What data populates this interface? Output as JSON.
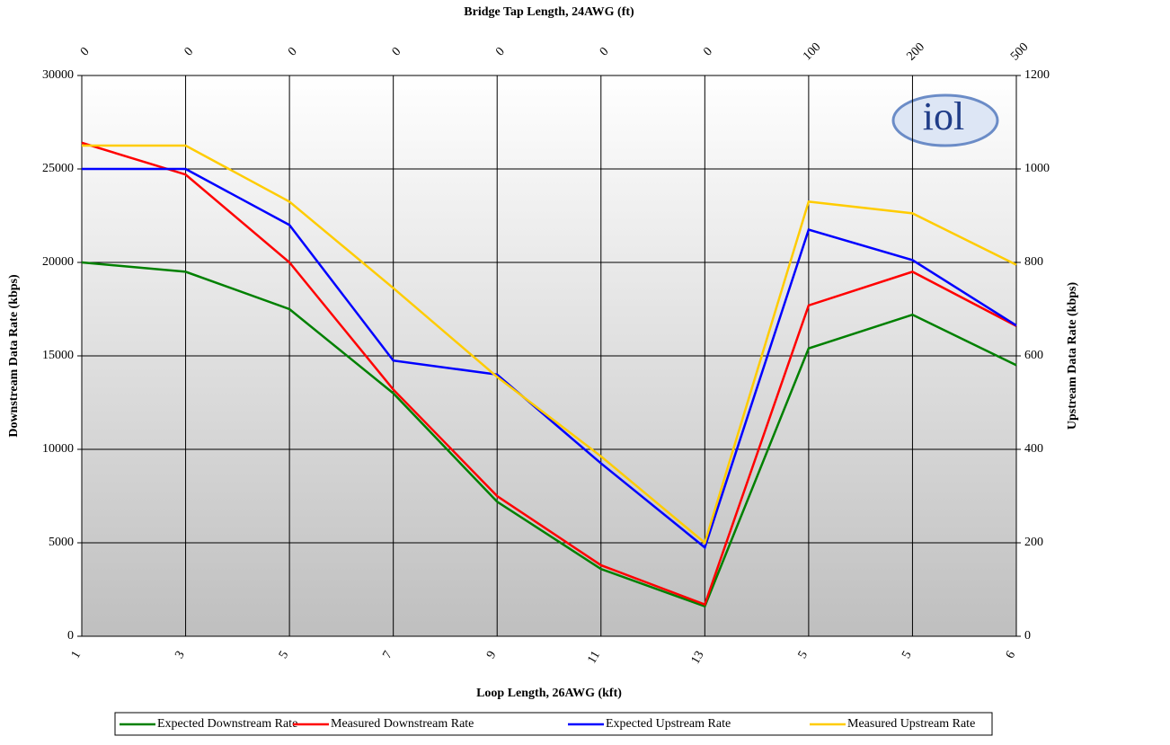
{
  "chart_data": {
    "type": "line",
    "title": "Bridge Tap Length, 24AWG (ft)",
    "x_label": "Loop Length, 26AWG (kft)",
    "y_label": "Downstream Data Rate (kbps)",
    "y2_label": "Upstream Data Rate (kbps)",
    "logo": "iol",
    "categories": [
      "1",
      "3",
      "5",
      "7",
      "9",
      "11",
      "13",
      "5",
      "5",
      "6"
    ],
    "top_categories": [
      "0",
      "0",
      "0",
      "0",
      "0",
      "0",
      "0",
      "100",
      "200",
      "500"
    ],
    "ylim": [
      0,
      30000
    ],
    "yticks": [
      0,
      5000,
      10000,
      15000,
      20000,
      25000,
      30000
    ],
    "y2lim": [
      0,
      1200
    ],
    "y2ticks": [
      0,
      200,
      400,
      600,
      800,
      1000,
      1200
    ],
    "grid": true,
    "legend": "bottom",
    "series": [
      {
        "name": "Expected Downstream Rate",
        "color": "#008000",
        "values": [
          20000,
          19500,
          17500,
          13000,
          7200,
          3600,
          1600,
          15400,
          17200,
          14500
        ]
      },
      {
        "name": "Measured Downstream Rate",
        "color": "#ff0000",
        "values": [
          26400,
          24700,
          20000,
          13200,
          7500,
          3800,
          1700,
          17700,
          19500,
          16600
        ]
      },
      {
        "name": "Expected Upstream Rate",
        "color": "#0000ff",
        "axis": "y2",
        "values": [
          1000,
          1000,
          880,
          590,
          560,
          370,
          190,
          870,
          805,
          665
        ]
      },
      {
        "name": "Measured Upstream Rate",
        "color": "#ffcc00",
        "axis": "y2",
        "values": [
          1050,
          1050,
          930,
          745,
          555,
          385,
          200,
          930,
          905,
          795
        ]
      }
    ]
  }
}
